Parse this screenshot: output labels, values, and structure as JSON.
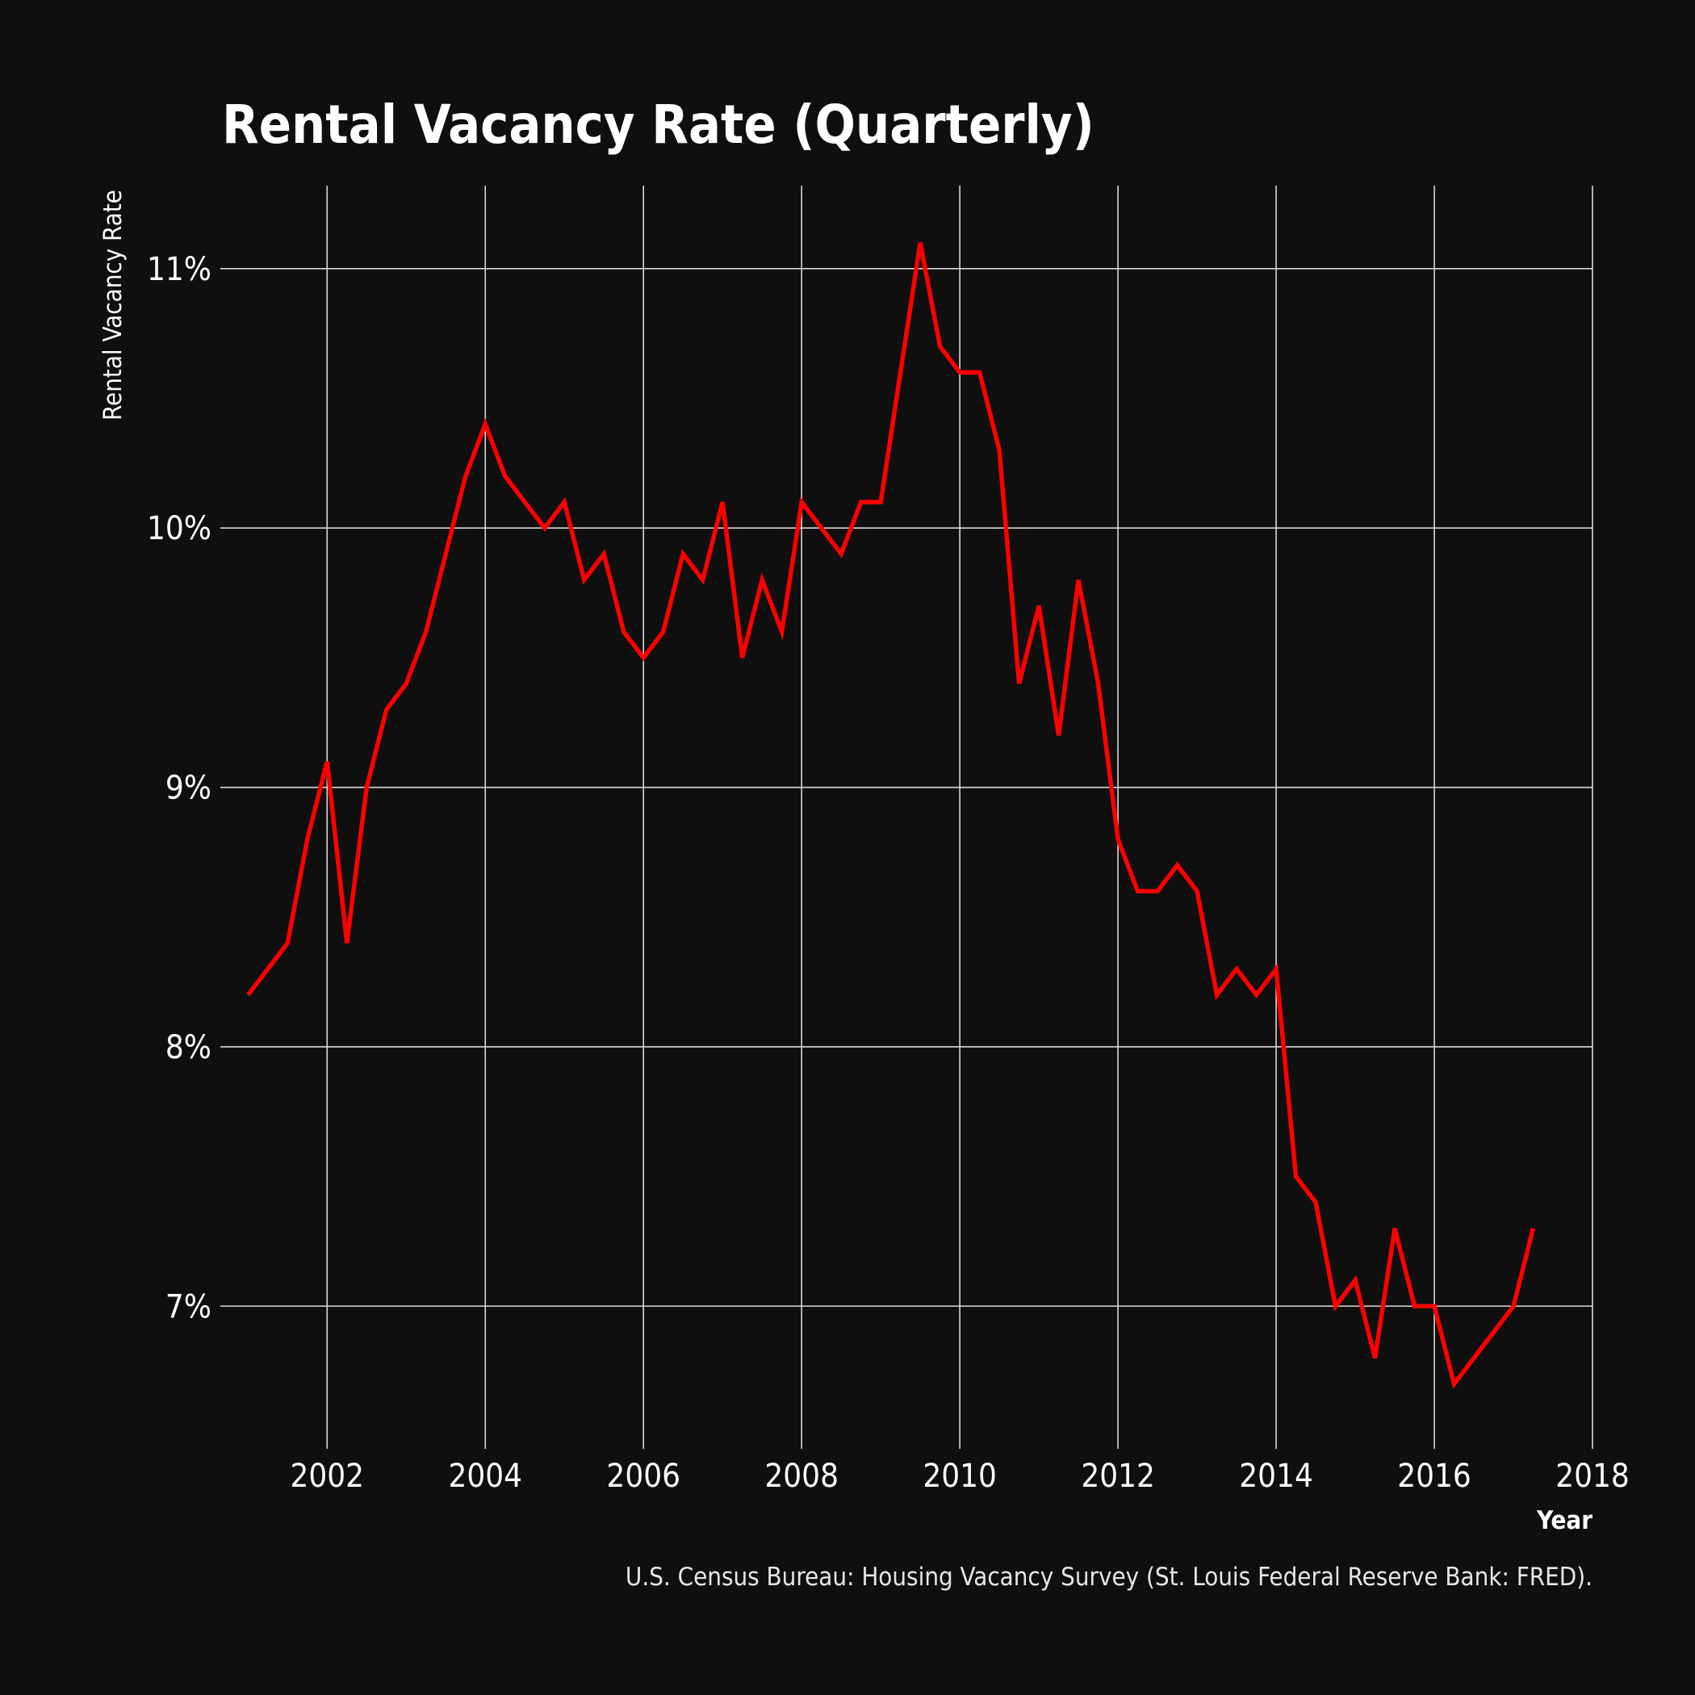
{
  "chart_data": {
    "type": "line",
    "title": "Rental Vacancy Rate (Quarterly)",
    "xlabel": "Year",
    "ylabel": "Rental Vacancy Rate",
    "caption": "U.S. Census Bureau: Housing Vacancy Survey (St. Louis Federal Reserve Bank: FRED).",
    "x_ticks": [
      2002,
      2004,
      2006,
      2008,
      2010,
      2012,
      2014,
      2016,
      2018
    ],
    "y_ticks": [
      7,
      8,
      9,
      10,
      11
    ],
    "y_tick_labels": [
      "7%",
      "8%",
      "9%",
      "10%",
      "11%"
    ],
    "xlim": [
      2000.65,
      2018.0
    ],
    "ylim": [
      6.45,
      11.32
    ],
    "grid": true,
    "legend": "none",
    "line_color": "#ff0000",
    "background_color": "#0f0f0f",
    "series": [
      {
        "x": [
          2001.0,
          2001.5,
          2001.75,
          2002.0,
          2002.25,
          2002.5,
          2002.75,
          2003.0,
          2003.25,
          2003.5,
          2003.75,
          2004.0,
          2004.25,
          2004.5,
          2004.75,
          2005.0,
          2005.25,
          2005.5,
          2005.75,
          2006.0,
          2006.25,
          2006.5,
          2006.75,
          2007.0,
          2007.25,
          2007.5,
          2007.75,
          2008.0,
          2008.25,
          2008.5,
          2008.75,
          2009.0,
          2009.25,
          2009.5,
          2009.75,
          2010.0,
          2010.25,
          2010.5,
          2010.75,
          2011.0,
          2011.25,
          2011.5,
          2011.75,
          2012.0,
          2012.25,
          2012.5,
          2012.75,
          2013.0,
          2013.25,
          2013.5,
          2013.75,
          2014.0,
          2014.25,
          2014.5,
          2014.75,
          2015.0,
          2015.25,
          2015.5,
          2015.75,
          2016.0,
          2016.25,
          2016.5,
          2016.75,
          2017.0,
          2017.25
        ],
        "values": [
          8.2,
          8.4,
          8.8,
          9.1,
          8.4,
          9.0,
          9.3,
          9.4,
          9.6,
          9.9,
          10.2,
          10.4,
          10.2,
          10.1,
          10.0,
          10.1,
          9.8,
          9.9,
          9.6,
          9.5,
          9.6,
          9.9,
          9.8,
          10.1,
          9.5,
          9.8,
          9.6,
          10.1,
          10.0,
          9.9,
          10.1,
          10.1,
          10.6,
          11.1,
          10.7,
          10.6,
          10.6,
          10.3,
          9.4,
          9.7,
          9.2,
          9.8,
          9.4,
          8.8,
          8.6,
          8.6,
          8.7,
          8.6,
          8.2,
          8.3,
          8.2,
          8.3,
          7.5,
          7.4,
          7.0,
          7.1,
          6.8,
          7.3,
          7.0,
          7.0,
          6.7,
          6.8,
          6.9,
          7.0,
          7.3
        ]
      }
    ]
  }
}
